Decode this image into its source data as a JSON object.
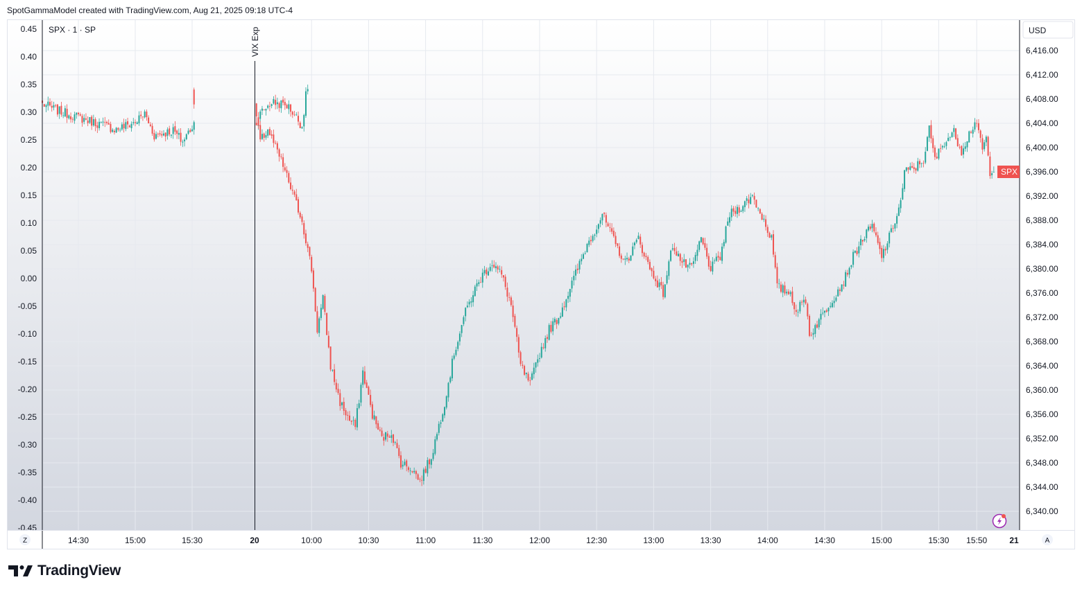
{
  "header": {
    "attribution": "SpotGammaModel created with TradingView.com, Aug 21, 2025 09:18 UTC-4"
  },
  "footer": {
    "brand": "TradingView"
  },
  "chart_data": {
    "type": "candlestick",
    "symbol_legend": "SPX · 1 · SP",
    "currency_label": "USD",
    "last_price_label": "SPX",
    "colors": {
      "up": "#26a69a",
      "down": "#ef5350",
      "badge": "#ef5350"
    },
    "annotation": {
      "label": "VIX Exp",
      "x": "20"
    },
    "left_axis": {
      "ticks": [
        "0.45",
        "0.40",
        "0.35",
        "0.30",
        "0.25",
        "0.20",
        "0.15",
        "0.10",
        "0.05",
        "0.00",
        "-0.05",
        "-0.10",
        "-0.15",
        "-0.20",
        "-0.25",
        "-0.30",
        "-0.35",
        "-0.40",
        "-0.45"
      ],
      "ylim": [
        -0.45,
        0.45
      ]
    },
    "right_axis": {
      "ticks": [
        "6,416.00",
        "6,412.00",
        "6,408.00",
        "6,404.00",
        "6,400.00",
        "6,396.00",
        "6,392.00",
        "6,388.00",
        "6,384.00",
        "6,380.00",
        "6,376.00",
        "6,372.00",
        "6,368.00",
        "6,364.00",
        "6,360.00",
        "6,356.00",
        "6,352.00",
        "6,348.00",
        "6,344.00",
        "6,340.00"
      ],
      "ylim": [
        6340,
        6416
      ]
    },
    "x_axis": {
      "left_button": "Z",
      "right_button": "A",
      "ticks": [
        "14:30",
        "15:00",
        "15:30",
        "20",
        "10:00",
        "10:30",
        "11:00",
        "11:30",
        "12:00",
        "12:30",
        "13:00",
        "13:30",
        "14:00",
        "14:30",
        "15:00",
        "15:30",
        "15:50",
        "21"
      ]
    },
    "price_path": [
      [
        "Aug 19 14:11",
        6407.2
      ],
      [
        "Aug 19 14:20",
        6406.0
      ],
      [
        "Aug 19 14:30",
        6405.0
      ],
      [
        "Aug 19 14:40",
        6404.0
      ],
      [
        "Aug 19 14:50",
        6403.0
      ],
      [
        "Aug 19 15:00",
        6404.2
      ],
      [
        "Aug 19 15:05",
        6405.6
      ],
      [
        "Aug 19 15:10",
        6402.0
      ],
      [
        "Aug 19 15:20",
        6402.8
      ],
      [
        "Aug 19 15:25",
        6401.0
      ],
      [
        "Aug 19 15:35",
        6406.0
      ],
      [
        "Aug 19 15:40",
        6407.5
      ],
      [
        "Aug 19 15:48",
        6407.0
      ],
      [
        "Aug 19 15:52",
        6405.5
      ],
      [
        "Aug 19 15:56",
        6403.5
      ],
      [
        "Aug 19 15:58",
        6408.5
      ],
      [
        "Aug 19 15:59",
        6410.0
      ],
      [
        "Aug 20 09:30",
        6407.0
      ],
      [
        "Aug 20 09:33",
        6401.0
      ],
      [
        "Aug 20 09:37",
        6403.0
      ],
      [
        "Aug 20 09:45",
        6397.0
      ],
      [
        "Aug 20 09:55",
        6388.0
      ],
      [
        "Aug 20 10:00",
        6380.0
      ],
      [
        "Aug 20 10:03",
        6370.0
      ],
      [
        "Aug 20 10:06",
        6375.0
      ],
      [
        "Aug 20 10:10",
        6364.0
      ],
      [
        "Aug 20 10:15",
        6358.0
      ],
      [
        "Aug 20 10:20",
        6355.0
      ],
      [
        "Aug 20 10:23",
        6354.0
      ],
      [
        "Aug 20 10:27",
        6363.0
      ],
      [
        "Aug 20 10:32",
        6356.0
      ],
      [
        "Aug 20 10:37",
        6352.0
      ],
      [
        "Aug 20 10:42",
        6353.0
      ],
      [
        "Aug 20 10:47",
        6348.0
      ],
      [
        "Aug 20 10:53",
        6347.0
      ],
      [
        "Aug 20 10:57",
        6345.0
      ],
      [
        "Aug 20 11:03",
        6349.0
      ],
      [
        "Aug 20 11:10",
        6358.0
      ],
      [
        "Aug 20 11:15",
        6366.0
      ],
      [
        "Aug 20 11:20",
        6372.0
      ],
      [
        "Aug 20 11:25",
        6376.0
      ],
      [
        "Aug 20 11:30",
        6379.0
      ],
      [
        "Aug 20 11:35",
        6381.0
      ],
      [
        "Aug 20 11:40",
        6379.0
      ],
      [
        "Aug 20 11:45",
        6374.0
      ],
      [
        "Aug 20 11:50",
        6364.0
      ],
      [
        "Aug 20 11:55",
        6361.0
      ],
      [
        "Aug 20 12:00",
        6366.0
      ],
      [
        "Aug 20 12:05",
        6370.0
      ],
      [
        "Aug 20 12:10",
        6372.0
      ],
      [
        "Aug 20 12:20",
        6380.0
      ],
      [
        "Aug 20 12:25",
        6384.0
      ],
      [
        "Aug 20 12:30",
        6387.0
      ],
      [
        "Aug 20 12:33",
        6389.0
      ],
      [
        "Aug 20 12:40",
        6384.0
      ],
      [
        "Aug 20 12:45",
        6381.0
      ],
      [
        "Aug 20 12:52",
        6385.0
      ],
      [
        "Aug 20 12:58",
        6380.0
      ],
      [
        "Aug 20 13:05",
        6376.0
      ],
      [
        "Aug 20 13:10",
        6384.0
      ],
      [
        "Aug 20 13:15",
        6381.0
      ],
      [
        "Aug 20 13:20",
        6380.0
      ],
      [
        "Aug 20 13:25",
        6385.0
      ],
      [
        "Aug 20 13:30",
        6380.0
      ],
      [
        "Aug 20 13:35",
        6382.0
      ],
      [
        "Aug 20 13:40",
        6389.0
      ],
      [
        "Aug 20 13:45",
        6390.0
      ],
      [
        "Aug 20 13:52",
        6392.0
      ],
      [
        "Aug 20 13:58",
        6388.0
      ],
      [
        "Aug 20 14:02",
        6385.0
      ],
      [
        "Aug 20 14:05",
        6377.0
      ],
      [
        "Aug 20 14:12",
        6376.0
      ],
      [
        "Aug 20 14:15",
        6373.0
      ],
      [
        "Aug 20 14:20",
        6375.0
      ],
      [
        "Aug 20 14:22",
        6369.0
      ],
      [
        "Aug 20 14:30",
        6373.0
      ],
      [
        "Aug 20 14:40",
        6378.0
      ],
      [
        "Aug 20 14:45",
        6382.0
      ],
      [
        "Aug 20 14:50",
        6385.0
      ],
      [
        "Aug 20 14:55",
        6387.0
      ],
      [
        "Aug 20 15:00",
        6382.0
      ],
      [
        "Aug 20 15:05",
        6386.0
      ],
      [
        "Aug 20 15:10",
        6391.0
      ],
      [
        "Aug 20 15:12",
        6396.0
      ],
      [
        "Aug 20 15:17",
        6396.5
      ],
      [
        "Aug 20 15:22",
        6398.0
      ],
      [
        "Aug 20 15:25",
        6403.0
      ],
      [
        "Aug 20 15:28",
        6398.0
      ],
      [
        "Aug 20 15:33",
        6401.0
      ],
      [
        "Aug 20 15:38",
        6402.5
      ],
      [
        "Aug 20 15:42",
        6399.5
      ],
      [
        "Aug 20 15:47",
        6403.0
      ],
      [
        "Aug 20 15:50",
        6404.5
      ],
      [
        "Aug 20 15:53",
        6399.0
      ],
      [
        "Aug 20 15:55",
        6402.0
      ],
      [
        "Aug 20 15:57",
        6395.0
      ],
      [
        "Aug 20 15:59",
        6396.0
      ]
    ]
  }
}
